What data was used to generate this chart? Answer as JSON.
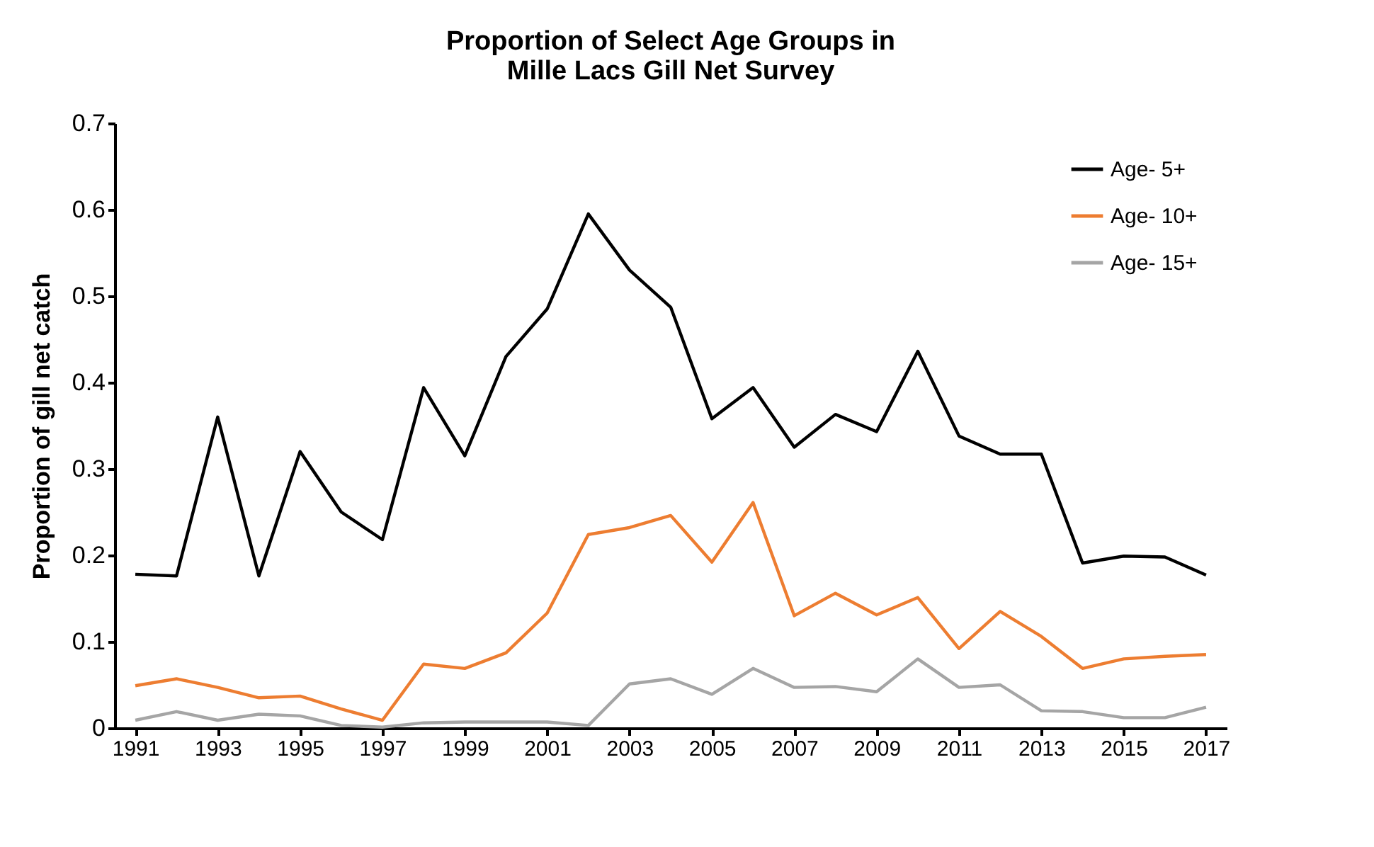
{
  "chart_data": {
    "type": "line",
    "title": "Proportion of Select Age Groups in\nMille Lacs Gill Net Survey",
    "ylabel": "Proportion of gill net catch",
    "x": [
      1991,
      1992,
      1993,
      1994,
      1995,
      1996,
      1997,
      1998,
      1999,
      2000,
      2001,
      2002,
      2003,
      2004,
      2005,
      2006,
      2007,
      2008,
      2009,
      2010,
      2011,
      2012,
      2013,
      2014,
      2015,
      2016,
      2017
    ],
    "series": [
      {
        "name": "Age- 5+",
        "color": "#000000",
        "values": [
          0.178,
          0.176,
          0.36,
          0.176,
          0.32,
          0.25,
          0.218,
          0.394,
          0.315,
          0.43,
          0.485,
          0.595,
          0.53,
          0.487,
          0.358,
          0.394,
          0.325,
          0.363,
          0.343,
          0.436,
          0.338,
          0.317,
          0.317,
          0.191,
          0.199,
          0.198,
          0.177
        ]
      },
      {
        "name": "Age- 10+",
        "color": "#ed7d31",
        "values": [
          0.049,
          0.057,
          0.047,
          0.035,
          0.037,
          0.022,
          0.009,
          0.074,
          0.069,
          0.087,
          0.133,
          0.224,
          0.232,
          0.246,
          0.192,
          0.261,
          0.13,
          0.156,
          0.131,
          0.151,
          0.092,
          0.135,
          0.106,
          0.069,
          0.08,
          0.083,
          0.085
        ]
      },
      {
        "name": "Age- 15+",
        "color": "#a5a5a5",
        "values": [
          0.009,
          0.019,
          0.009,
          0.016,
          0.014,
          0.003,
          0.001,
          0.006,
          0.007,
          0.007,
          0.007,
          0.003,
          0.051,
          0.057,
          0.039,
          0.069,
          0.047,
          0.048,
          0.042,
          0.08,
          0.047,
          0.05,
          0.02,
          0.019,
          0.012,
          0.012,
          0.024
        ]
      }
    ],
    "xlim": [
      1990.5,
      2017.5
    ],
    "xticks": [
      1991,
      1993,
      1995,
      1997,
      1999,
      2001,
      2003,
      2005,
      2007,
      2009,
      2011,
      2013,
      2015,
      2017
    ],
    "ylim": [
      0,
      0.7
    ],
    "yticks": [
      0,
      0.1,
      0.2,
      0.3,
      0.4,
      0.5,
      0.6,
      0.7
    ],
    "grid": false,
    "legend": "top right",
    "marker": "none",
    "line_style": "solid"
  }
}
